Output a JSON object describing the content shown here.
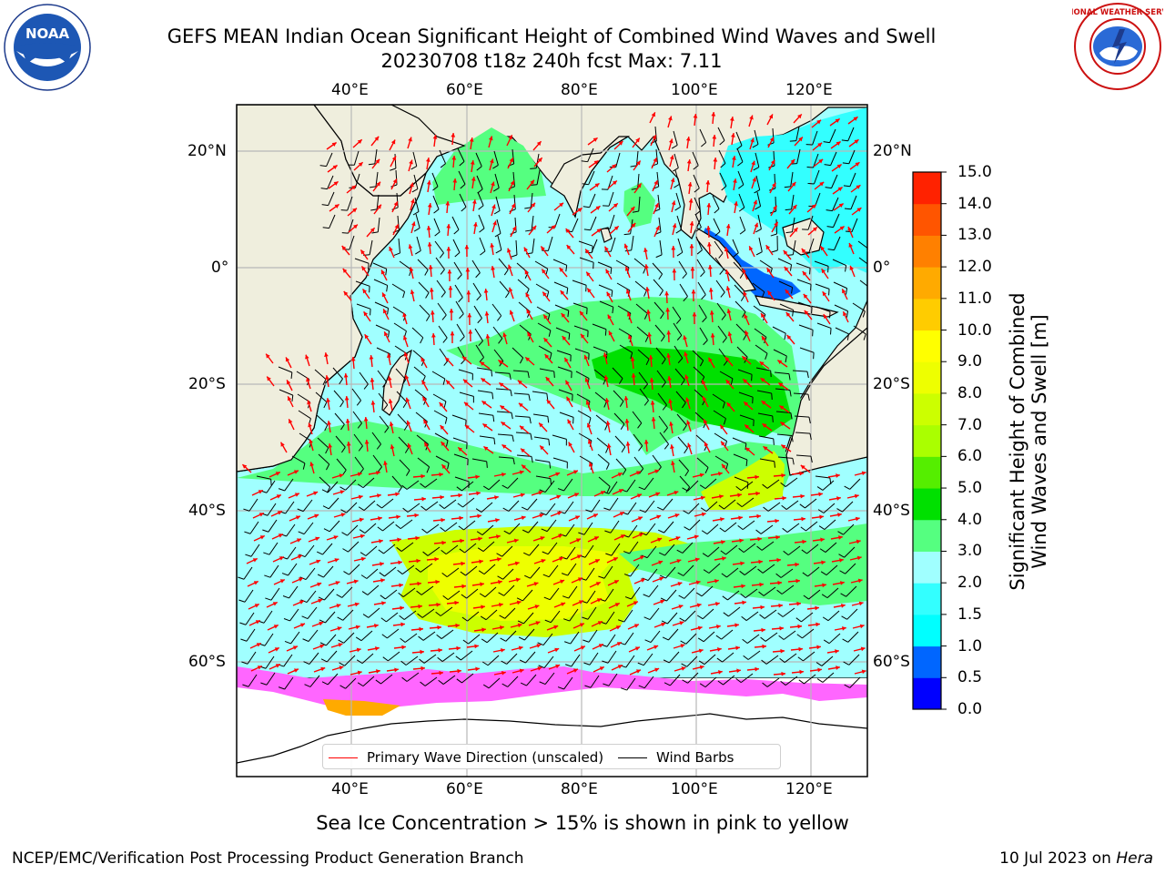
{
  "title_line1": "GEFS MEAN Indian Ocean Significant Height of Combined Wind Waves and Swell",
  "title_line2": "20230708 t18z 240h fcst   Max: 7.11",
  "logos": {
    "left": "noaa-logo",
    "left_text": "NOAA",
    "right": "nws-logo",
    "right_text": "NATIONAL WEATHER SERVICE"
  },
  "map": {
    "lon_labels": [
      "40°E",
      "60°E",
      "80°E",
      "100°E",
      "120°E"
    ],
    "lat_labels": [
      "20°N",
      "0°",
      "20°S",
      "40°S",
      "60°S"
    ],
    "land_color": "#efeedd",
    "ice_color": "#ff66ff"
  },
  "colorbar": {
    "title_line1": "Significant Height of Combined",
    "title_line2": "Wind Waves and Swell [m]",
    "ticks": [
      "0.0",
      "0.5",
      "1.0",
      "1.5",
      "2.0",
      "3.0",
      "4.0",
      "5.0",
      "6.0",
      "7.0",
      "8.0",
      "9.0",
      "10.0",
      "11.0",
      "12.0",
      "13.0",
      "14.0",
      "15.0"
    ],
    "colors": [
      "#0000ff",
      "#0066ff",
      "#00ffff",
      "#33ffff",
      "#a0ffff",
      "#55ff80",
      "#00e000",
      "#55ee00",
      "#aaff00",
      "#ccff00",
      "#eeff00",
      "#ffff00",
      "#ffcc00",
      "#ffaa00",
      "#ff8000",
      "#ff5500",
      "#ff2200"
    ]
  },
  "legend": {
    "primary_wave": "Primary Wave Direction (unscaled)",
    "wind_barbs": "Wind Barbs",
    "primary_color": "#ff0000",
    "wind_color": "#000000"
  },
  "ice_note": "Sea Ice Concentration > 15% is shown in pink to yellow",
  "footer": {
    "left": "NCEP/EMC/Verification Post Processing Product Generation Branch",
    "right_date": "10 Jul 2023 on ",
    "right_host": "Hera"
  }
}
